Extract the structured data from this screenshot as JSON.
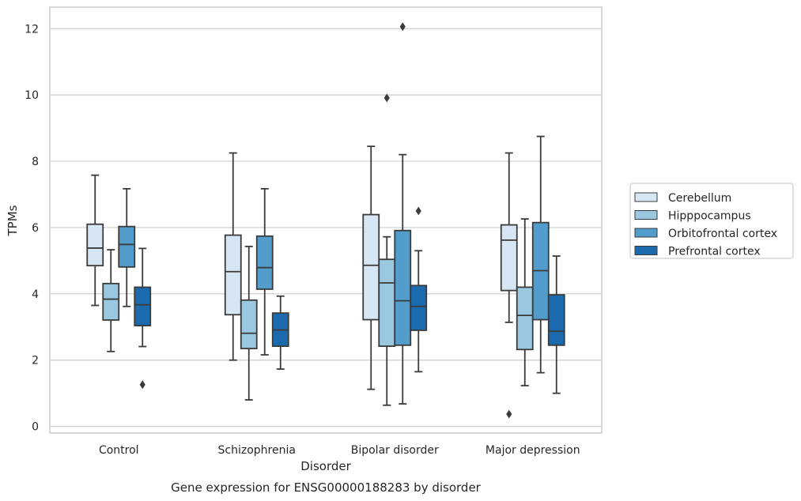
{
  "caption": "Gene expression for ENSG00000188283 by disorder",
  "chart_data": {
    "type": "boxplot",
    "title": "",
    "xlabel": "Disorder",
    "ylabel": "TPMs",
    "ylim": [
      -0.2,
      12.65
    ],
    "yticks": [
      0,
      2,
      4,
      6,
      8,
      10,
      12
    ],
    "ytick_labels": [
      "0",
      "2",
      "4",
      "6",
      "8",
      "10",
      "12"
    ],
    "grid": "horizontal",
    "legend_position": "right",
    "categories": [
      "Control",
      "Schizophrenia",
      "Bipolar disorder",
      "Major depression"
    ],
    "series": [
      {
        "name": "Cerebellum",
        "color": "#d6e6f4",
        "boxes": [
          {
            "whisker_low": 3.65,
            "q1": 4.85,
            "median": 5.38,
            "q3": 6.1,
            "whisker_high": 7.58,
            "outliers": []
          },
          {
            "whisker_low": 2.0,
            "q1": 3.37,
            "median": 4.67,
            "q3": 5.77,
            "whisker_high": 8.25,
            "outliers": []
          },
          {
            "whisker_low": 1.12,
            "q1": 3.22,
            "median": 4.86,
            "q3": 6.39,
            "whisker_high": 8.45,
            "outliers": []
          },
          {
            "whisker_low": 3.14,
            "q1": 4.1,
            "median": 5.62,
            "q3": 6.08,
            "whisker_high": 8.25,
            "outliers": [
              0.37
            ]
          }
        ]
      },
      {
        "name": "Hipppocampus",
        "color": "#9ac8e0",
        "boxes": [
          {
            "whisker_low": 2.26,
            "q1": 3.21,
            "median": 3.84,
            "q3": 4.31,
            "whisker_high": 5.33,
            "outliers": []
          },
          {
            "whisker_low": 0.8,
            "q1": 2.35,
            "median": 2.81,
            "q3": 3.81,
            "whisker_high": 5.43,
            "outliers": []
          },
          {
            "whisker_low": 0.64,
            "q1": 2.42,
            "median": 4.33,
            "q3": 5.04,
            "whisker_high": 5.72,
            "outliers": [
              9.91
            ]
          },
          {
            "whisker_low": 1.23,
            "q1": 2.32,
            "median": 3.35,
            "q3": 4.2,
            "whisker_high": 6.26,
            "outliers": []
          }
        ]
      },
      {
        "name": "Orbitofrontal cortex",
        "color": "#529dcc",
        "boxes": [
          {
            "whisker_low": 3.62,
            "q1": 4.81,
            "median": 5.49,
            "q3": 6.03,
            "whisker_high": 7.17,
            "outliers": []
          },
          {
            "whisker_low": 2.16,
            "q1": 4.14,
            "median": 4.79,
            "q3": 5.74,
            "whisker_high": 7.17,
            "outliers": []
          },
          {
            "whisker_low": 0.68,
            "q1": 2.45,
            "median": 3.79,
            "q3": 5.91,
            "whisker_high": 8.2,
            "outliers": [
              12.06
            ]
          },
          {
            "whisker_low": 1.62,
            "q1": 3.22,
            "median": 4.7,
            "q3": 6.15,
            "whisker_high": 8.75,
            "outliers": []
          }
        ]
      },
      {
        "name": "Prefrontal cortex",
        "color": "#1c6aae",
        "boxes": [
          {
            "whisker_low": 2.41,
            "q1": 3.04,
            "median": 3.67,
            "q3": 4.2,
            "whisker_high": 5.37,
            "outliers": [
              1.26
            ]
          },
          {
            "whisker_low": 1.73,
            "q1": 2.42,
            "median": 2.91,
            "q3": 3.42,
            "whisker_high": 3.93,
            "outliers": []
          },
          {
            "whisker_low": 1.65,
            "q1": 2.9,
            "median": 3.62,
            "q3": 4.25,
            "whisker_high": 5.3,
            "outliers": [
              6.5
            ]
          },
          {
            "whisker_low": 1.0,
            "q1": 2.45,
            "median": 2.87,
            "q3": 3.97,
            "whisker_high": 5.14,
            "outliers": []
          }
        ]
      }
    ]
  }
}
